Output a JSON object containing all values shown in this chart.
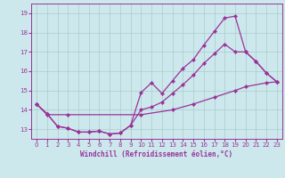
{
  "xlabel": "Windchill (Refroidissement éolien,°C)",
  "bg_color": "#cce8ec",
  "grid_color": "#aacccc",
  "line_color": "#993399",
  "xlim": [
    -0.5,
    23.5
  ],
  "ylim": [
    12.5,
    19.5
  ],
  "xticks": [
    0,
    1,
    2,
    3,
    4,
    5,
    6,
    7,
    8,
    9,
    10,
    11,
    12,
    13,
    14,
    15,
    16,
    17,
    18,
    19,
    20,
    21,
    22,
    23
  ],
  "yticks": [
    13,
    14,
    15,
    16,
    17,
    18,
    19
  ],
  "line1_x": [
    0,
    1,
    2,
    3,
    4,
    5,
    6,
    7,
    8,
    9,
    10,
    11,
    12,
    13,
    14,
    15,
    16,
    17,
    18,
    19,
    20,
    21,
    22,
    23
  ],
  "line1_y": [
    14.3,
    13.8,
    13.15,
    13.05,
    12.85,
    12.85,
    12.9,
    12.75,
    12.8,
    13.2,
    14.9,
    15.4,
    14.85,
    15.5,
    16.15,
    16.6,
    17.35,
    18.05,
    18.75,
    18.85,
    17.0,
    16.5,
    15.9,
    15.45
  ],
  "line2_x": [
    0,
    1,
    2,
    3,
    4,
    5,
    6,
    7,
    8,
    9,
    10,
    11,
    12,
    13,
    14,
    15,
    16,
    17,
    18,
    19,
    20,
    21,
    22,
    23
  ],
  "line2_y": [
    14.3,
    13.8,
    13.15,
    13.05,
    12.85,
    12.85,
    12.9,
    12.75,
    12.8,
    13.2,
    14.0,
    14.15,
    14.4,
    14.85,
    15.3,
    15.8,
    16.4,
    16.9,
    17.4,
    17.0,
    17.0,
    16.5,
    15.9,
    15.45
  ],
  "line3_x": [
    0,
    1,
    3,
    10,
    13,
    15,
    17,
    19,
    20,
    22,
    23
  ],
  "line3_y": [
    14.3,
    13.75,
    13.75,
    13.75,
    14.0,
    14.3,
    14.65,
    15.0,
    15.2,
    15.4,
    15.45
  ]
}
